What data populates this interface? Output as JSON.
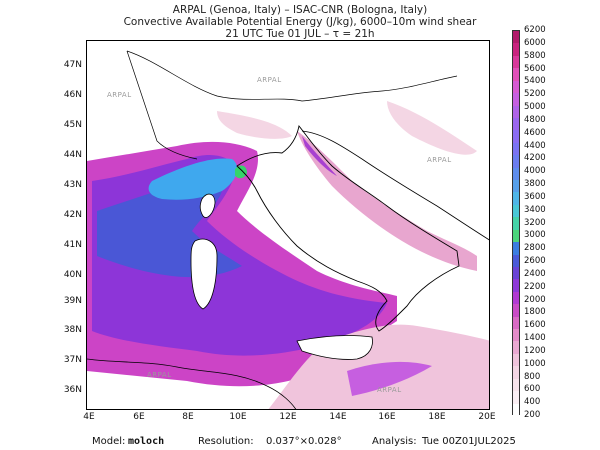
{
  "header": {
    "line1": "ARPAL (Genoa, Italy)  –  ISAC-CNR (Bologna, Italy)",
    "line2": "Convective Available Potential Energy (J/kg), 6000–10m wind shear",
    "line3": "21 UTC Tue 01 JUL   –   τ = 21h"
  },
  "map": {
    "lat_labels": [
      "47N",
      "46N",
      "45N",
      "44N",
      "43N",
      "42N",
      "41N",
      "40N",
      "39N",
      "38N",
      "37N",
      "36N"
    ],
    "lon_labels": [
      "4E",
      "6E",
      "8E",
      "10E",
      "12E",
      "14E",
      "16E",
      "18E",
      "20E"
    ],
    "watermark": "ARPAL",
    "colors": {
      "land": "#ffffff",
      "low_cape": "#f2c4d6",
      "mid_cape": "#d24fc8",
      "high_cape": "#8d2fd8",
      "very_high_cape": "#4a57d6",
      "peak_cape": "#3fa8ee",
      "max_cape": "#35d46a"
    }
  },
  "colorbar": {
    "labels": [
      "6200",
      "6000",
      "5800",
      "5600",
      "5400",
      "5200",
      "5000",
      "4800",
      "4600",
      "4400",
      "4200",
      "4000",
      "3800",
      "3600",
      "3400",
      "3200",
      "3000",
      "2800",
      "2600",
      "2400",
      "2200",
      "2000",
      "1800",
      "1600",
      "1400",
      "1200",
      "1000",
      "800",
      "600",
      "400",
      "200"
    ],
    "colors_top_to_bottom": [
      "#b11a6a",
      "#c8237e",
      "#d8389a",
      "#e050b8",
      "#d65ad2",
      "#c65fe0",
      "#b063e8",
      "#9b66ef",
      "#8a6cf2",
      "#7a73f2",
      "#6b7df0",
      "#5e8ded",
      "#56a0ea",
      "#4fb6e8",
      "#49c8d6",
      "#45d3a8",
      "#4cd57a",
      "#3b7de0",
      "#4a5ad8",
      "#6a44d6",
      "#8e3ad8",
      "#b13ad2",
      "#c94bc6",
      "#d86ac4",
      "#e48cc9",
      "#eaa9d2",
      "#f0c4dc",
      "#f4d6e4",
      "#f8e4ec",
      "#fbeff4",
      "#ffffff"
    ]
  },
  "footer": {
    "model_label": "Model:",
    "model_value": "moloch",
    "resolution_label": "Resolution:",
    "resolution_value": "0.037°×0.028°",
    "analysis_label": "Analysis:",
    "analysis_value": "Tue 00Z01JUL2025"
  }
}
